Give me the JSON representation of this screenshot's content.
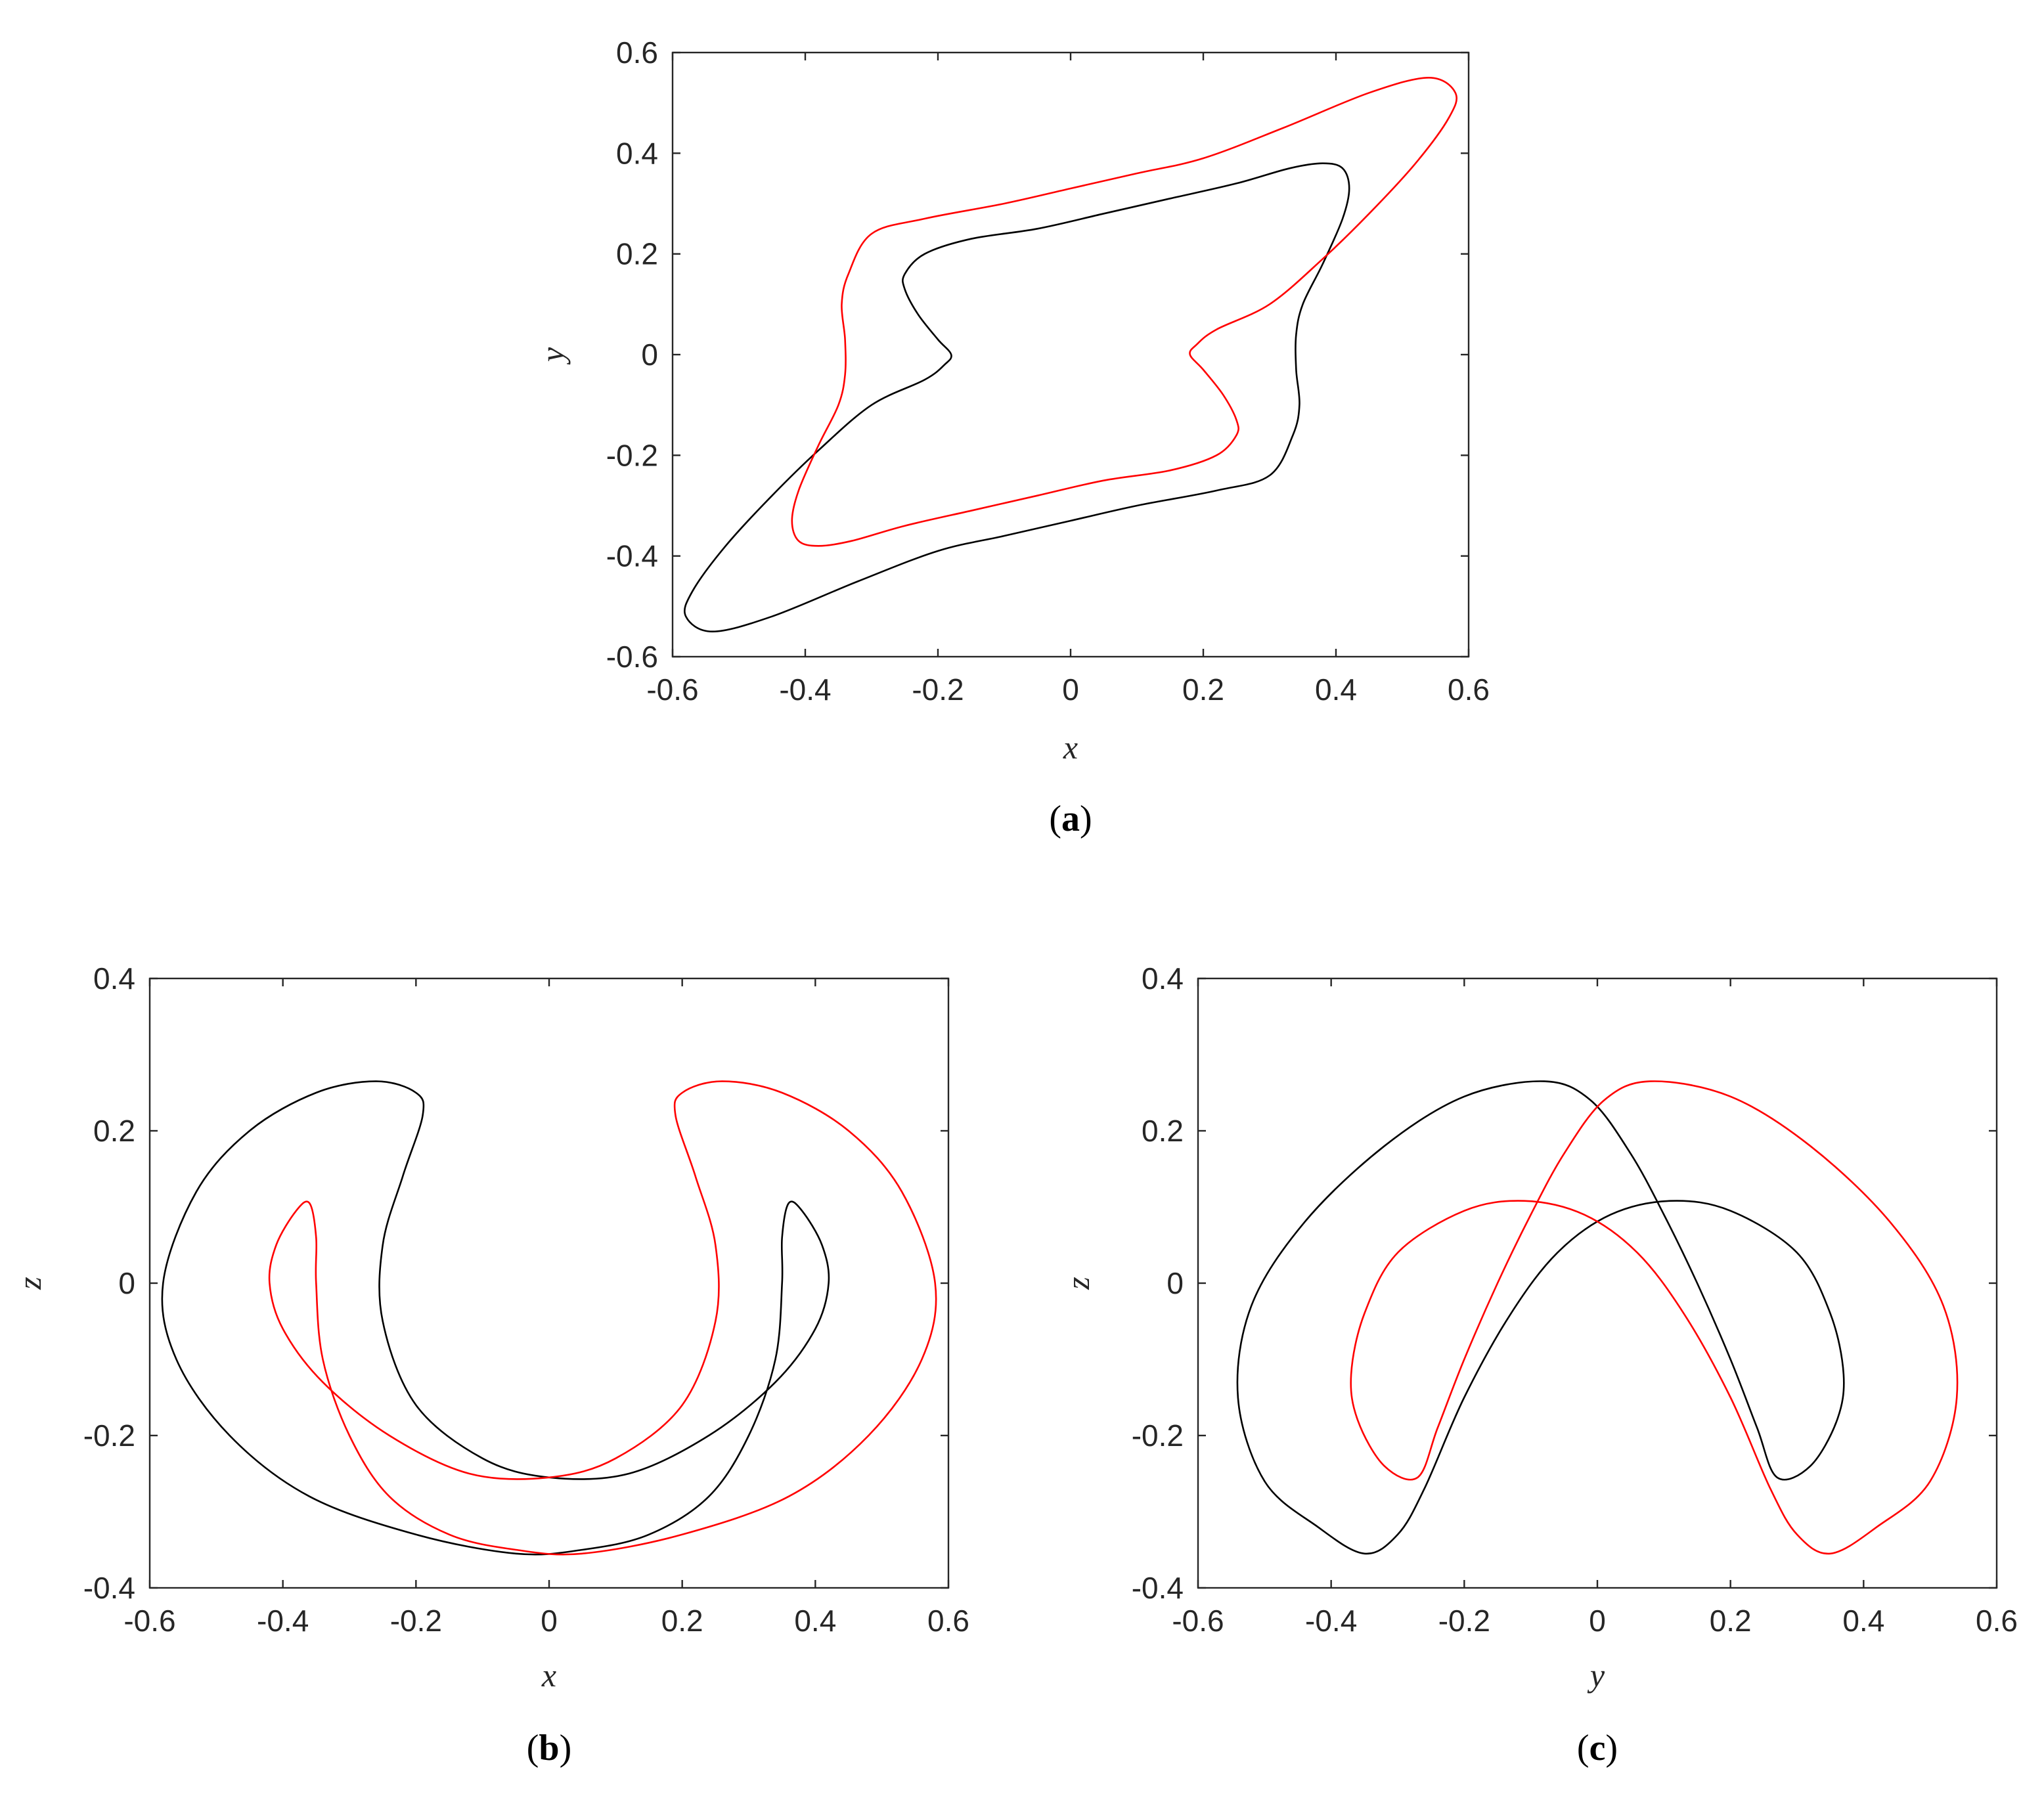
{
  "chart_data": [
    {
      "type": "line",
      "panel_label": "a",
      "xlabel": "x",
      "ylabel": "y",
      "xlim": [
        -0.6,
        0.6
      ],
      "ylim": [
        -0.6,
        0.6
      ],
      "xticks": [
        "-0.6",
        "-0.4",
        "-0.2",
        "0",
        "0.2",
        "0.4",
        "0.6"
      ],
      "yticks": [
        "-0.6",
        "-0.4",
        "-0.2",
        "0",
        "0.2",
        "0.4",
        "0.6"
      ],
      "grid": false,
      "series": [
        {
          "color": "#000000",
          "points": [
            [
              -0.18,
              0.0
            ],
            [
              -0.2,
              0.03
            ],
            [
              -0.23,
              0.08
            ],
            [
              -0.25,
              0.13
            ],
            [
              -0.25,
              0.16
            ],
            [
              -0.22,
              0.2
            ],
            [
              -0.15,
              0.23
            ],
            [
              -0.05,
              0.25
            ],
            [
              0.05,
              0.28
            ],
            [
              0.15,
              0.31
            ],
            [
              0.25,
              0.34
            ],
            [
              0.33,
              0.37
            ],
            [
              0.38,
              0.38
            ],
            [
              0.41,
              0.37
            ],
            [
              0.42,
              0.33
            ],
            [
              0.41,
              0.27
            ],
            [
              0.38,
              0.18
            ],
            [
              0.35,
              0.1
            ],
            [
              0.34,
              0.04
            ],
            [
              0.34,
              -0.03
            ],
            [
              0.345,
              -0.1
            ],
            [
              0.335,
              -0.16
            ],
            [
              0.3,
              -0.24
            ],
            [
              0.22,
              -0.27
            ],
            [
              0.1,
              -0.3
            ],
            [
              0.0,
              -0.33
            ],
            [
              -0.1,
              -0.36
            ],
            [
              -0.2,
              -0.39
            ],
            [
              -0.32,
              -0.45
            ],
            [
              -0.45,
              -0.52
            ],
            [
              -0.54,
              -0.55
            ],
            [
              -0.58,
              -0.52
            ],
            [
              -0.57,
              -0.47
            ],
            [
              -0.52,
              -0.38
            ],
            [
              -0.45,
              -0.28
            ],
            [
              -0.38,
              -0.19
            ],
            [
              -0.3,
              -0.1
            ],
            [
              -0.22,
              -0.05
            ],
            [
              -0.19,
              -0.02
            ],
            [
              -0.18,
              0.0
            ]
          ]
        },
        {
          "color": "#ff0000",
          "points": [
            [
              0.18,
              0.0
            ],
            [
              0.2,
              -0.03
            ],
            [
              0.23,
              -0.08
            ],
            [
              0.25,
              -0.13
            ],
            [
              0.25,
              -0.16
            ],
            [
              0.22,
              -0.2
            ],
            [
              0.15,
              -0.23
            ],
            [
              0.05,
              -0.25
            ],
            [
              -0.05,
              -0.28
            ],
            [
              -0.15,
              -0.31
            ],
            [
              -0.25,
              -0.34
            ],
            [
              -0.33,
              -0.37
            ],
            [
              -0.38,
              -0.38
            ],
            [
              -0.41,
              -0.37
            ],
            [
              -0.42,
              -0.33
            ],
            [
              -0.41,
              -0.27
            ],
            [
              -0.38,
              -0.18
            ],
            [
              -0.35,
              -0.1
            ],
            [
              -0.34,
              -0.04
            ],
            [
              -0.34,
              0.03
            ],
            [
              -0.345,
              0.1
            ],
            [
              -0.335,
              0.16
            ],
            [
              -0.3,
              0.24
            ],
            [
              -0.22,
              0.27
            ],
            [
              -0.1,
              0.3
            ],
            [
              0.0,
              0.33
            ],
            [
              0.1,
              0.36
            ],
            [
              0.2,
              0.39
            ],
            [
              0.32,
              0.45
            ],
            [
              0.45,
              0.52
            ],
            [
              0.54,
              0.55
            ],
            [
              0.58,
              0.52
            ],
            [
              0.57,
              0.47
            ],
            [
              0.52,
              0.38
            ],
            [
              0.45,
              0.28
            ],
            [
              0.38,
              0.19
            ],
            [
              0.3,
              0.1
            ],
            [
              0.22,
              0.05
            ],
            [
              0.19,
              0.02
            ],
            [
              0.18,
              0.0
            ]
          ]
        }
      ]
    },
    {
      "type": "line",
      "panel_label": "b",
      "xlabel": "x",
      "ylabel": "z",
      "xlim": [
        -0.6,
        0.6
      ],
      "ylim": [
        -0.4,
        0.4
      ],
      "xticks": [
        "-0.6",
        "-0.4",
        "-0.2",
        "0",
        "0.2",
        "0.4",
        "0.6"
      ],
      "yticks": [
        "-0.4",
        "-0.2",
        "0",
        "0.2",
        "0.4"
      ],
      "grid": false,
      "series": [
        {
          "color": "#000000",
          "points": [
            [
              -0.19,
              0.22
            ],
            [
              -0.2,
              0.25
            ],
            [
              -0.26,
              0.265
            ],
            [
              -0.35,
              0.25
            ],
            [
              -0.45,
              0.2
            ],
            [
              -0.53,
              0.12
            ],
            [
              -0.58,
              0.0
            ],
            [
              -0.56,
              -0.1
            ],
            [
              -0.48,
              -0.2
            ],
            [
              -0.36,
              -0.28
            ],
            [
              -0.2,
              -0.33
            ],
            [
              -0.05,
              -0.355
            ],
            [
              0.05,
              -0.35
            ],
            [
              0.15,
              -0.33
            ],
            [
              0.24,
              -0.28
            ],
            [
              0.3,
              -0.2
            ],
            [
              0.34,
              -0.1
            ],
            [
              0.35,
              0.0
            ],
            [
              0.35,
              0.06
            ],
            [
              0.36,
              0.105
            ],
            [
              0.38,
              0.095
            ],
            [
              0.41,
              0.05
            ],
            [
              0.42,
              0.0
            ],
            [
              0.4,
              -0.06
            ],
            [
              0.34,
              -0.13
            ],
            [
              0.24,
              -0.2
            ],
            [
              0.12,
              -0.25
            ],
            [
              0.0,
              -0.255
            ],
            [
              -0.1,
              -0.23
            ],
            [
              -0.2,
              -0.16
            ],
            [
              -0.25,
              -0.05
            ],
            [
              -0.25,
              0.05
            ],
            [
              -0.22,
              0.14
            ],
            [
              -0.19,
              0.22
            ]
          ]
        },
        {
          "color": "#ff0000",
          "points": [
            [
              0.19,
              0.22
            ],
            [
              0.2,
              0.25
            ],
            [
              0.26,
              0.265
            ],
            [
              0.35,
              0.25
            ],
            [
              0.45,
              0.2
            ],
            [
              0.53,
              0.12
            ],
            [
              0.58,
              0.0
            ],
            [
              0.56,
              -0.1
            ],
            [
              0.48,
              -0.2
            ],
            [
              0.36,
              -0.28
            ],
            [
              0.2,
              -0.33
            ],
            [
              0.05,
              -0.355
            ],
            [
              -0.05,
              -0.35
            ],
            [
              -0.15,
              -0.33
            ],
            [
              -0.24,
              -0.28
            ],
            [
              -0.3,
              -0.2
            ],
            [
              -0.34,
              -0.1
            ],
            [
              -0.35,
              0.0
            ],
            [
              -0.35,
              0.06
            ],
            [
              -0.36,
              0.105
            ],
            [
              -0.38,
              0.095
            ],
            [
              -0.41,
              0.05
            ],
            [
              -0.42,
              0.0
            ],
            [
              -0.4,
              -0.06
            ],
            [
              -0.34,
              -0.13
            ],
            [
              -0.24,
              -0.2
            ],
            [
              -0.12,
              -0.25
            ],
            [
              0.0,
              -0.255
            ],
            [
              0.1,
              -0.23
            ],
            [
              0.2,
              -0.16
            ],
            [
              0.25,
              -0.05
            ],
            [
              0.25,
              0.05
            ],
            [
              0.22,
              0.14
            ],
            [
              0.19,
              0.22
            ]
          ]
        }
      ]
    },
    {
      "type": "line",
      "panel_label": "c",
      "xlabel": "y",
      "ylabel": "z",
      "xlim": [
        -0.6,
        0.6
      ],
      "ylim": [
        -0.4,
        0.4
      ],
      "xticks": [
        "-0.6",
        "-0.4",
        "-0.2",
        "0",
        "0.2",
        "0.4",
        "0.6"
      ],
      "yticks": [
        "-0.4",
        "-0.2",
        "0",
        "0.2",
        "0.4"
      ],
      "grid": false,
      "series": [
        {
          "color": "#000000",
          "points": [
            [
              -0.08,
              0.265
            ],
            [
              -0.01,
              0.24
            ],
            [
              0.05,
              0.17
            ],
            [
              0.1,
              0.09
            ],
            [
              0.15,
              0.0
            ],
            [
              0.2,
              -0.1
            ],
            [
              0.24,
              -0.19
            ],
            [
              0.27,
              -0.255
            ],
            [
              0.32,
              -0.24
            ],
            [
              0.36,
              -0.18
            ],
            [
              0.37,
              -0.12
            ],
            [
              0.35,
              -0.04
            ],
            [
              0.3,
              0.04
            ],
            [
              0.2,
              0.095
            ],
            [
              0.11,
              0.108
            ],
            [
              0.02,
              0.09
            ],
            [
              -0.06,
              0.04
            ],
            [
              -0.13,
              -0.04
            ],
            [
              -0.2,
              -0.15
            ],
            [
              -0.26,
              -0.27
            ],
            [
              -0.3,
              -0.33
            ],
            [
              -0.35,
              -0.355
            ],
            [
              -0.42,
              -0.32
            ],
            [
              -0.5,
              -0.26
            ],
            [
              -0.54,
              -0.15
            ],
            [
              -0.52,
              -0.03
            ],
            [
              -0.44,
              0.08
            ],
            [
              -0.32,
              0.18
            ],
            [
              -0.2,
              0.245
            ],
            [
              -0.08,
              0.265
            ]
          ]
        },
        {
          "color": "#ff0000",
          "points": [
            [
              0.08,
              0.265
            ],
            [
              0.01,
              0.24
            ],
            [
              -0.05,
              0.17
            ],
            [
              -0.1,
              0.09
            ],
            [
              -0.15,
              0.0
            ],
            [
              -0.2,
              -0.1
            ],
            [
              -0.24,
              -0.19
            ],
            [
              -0.27,
              -0.255
            ],
            [
              -0.32,
              -0.24
            ],
            [
              -0.36,
              -0.18
            ],
            [
              -0.37,
              -0.12
            ],
            [
              -0.35,
              -0.04
            ],
            [
              -0.3,
              0.04
            ],
            [
              -0.2,
              0.095
            ],
            [
              -0.11,
              0.108
            ],
            [
              -0.02,
              0.09
            ],
            [
              0.06,
              0.04
            ],
            [
              0.13,
              -0.04
            ],
            [
              0.2,
              -0.15
            ],
            [
              0.26,
              -0.27
            ],
            [
              0.3,
              -0.33
            ],
            [
              0.35,
              -0.355
            ],
            [
              0.42,
              -0.32
            ],
            [
              0.5,
              -0.26
            ],
            [
              0.54,
              -0.15
            ],
            [
              0.52,
              -0.03
            ],
            [
              0.44,
              0.08
            ],
            [
              0.32,
              0.18
            ],
            [
              0.2,
              0.245
            ],
            [
              0.08,
              0.265
            ]
          ]
        }
      ]
    }
  ]
}
